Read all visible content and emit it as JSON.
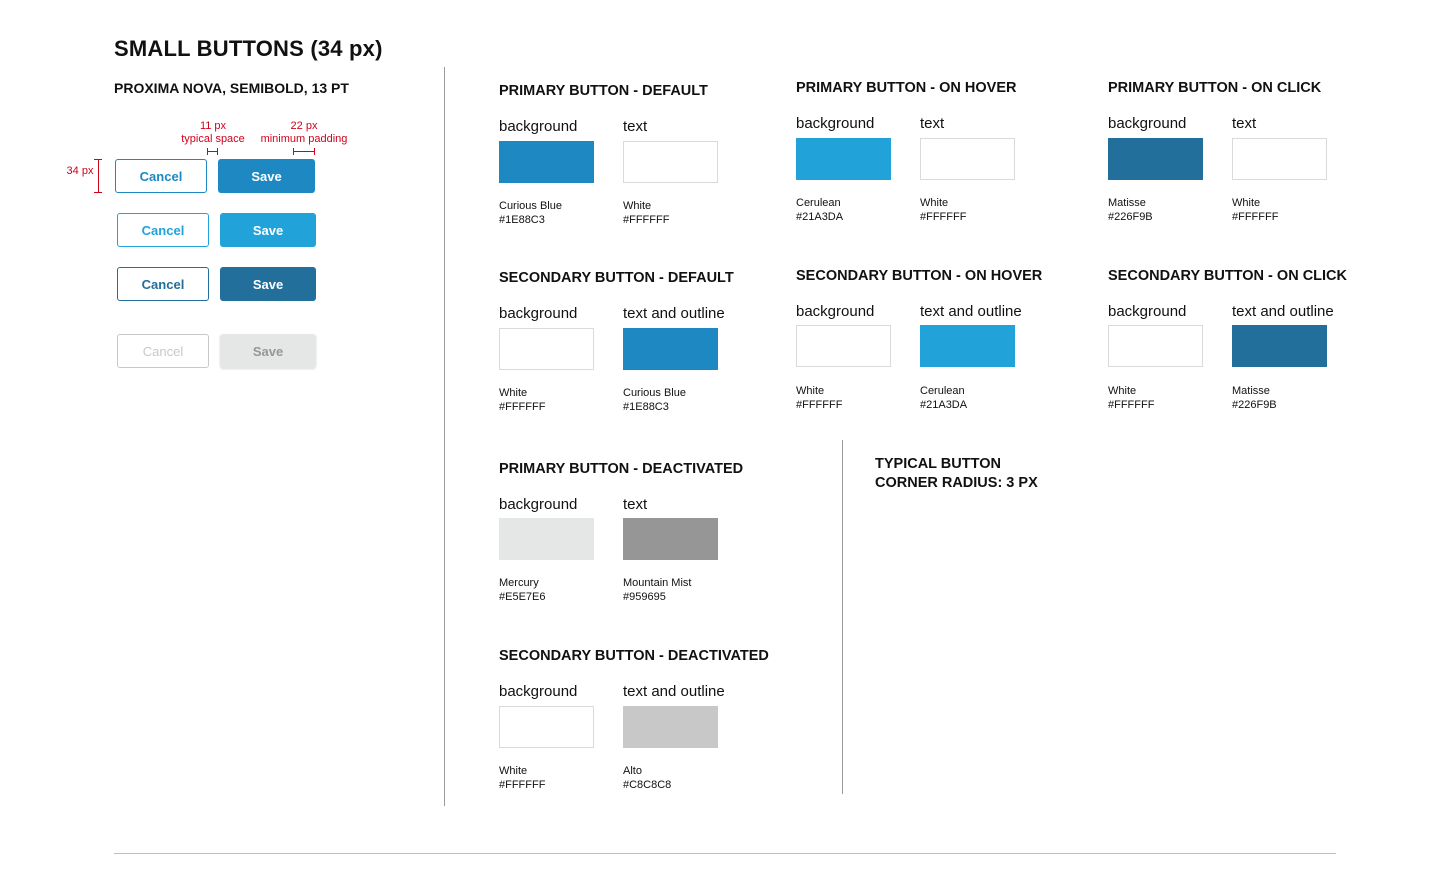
{
  "header": {
    "title": "SMALL BUTTONS (34 px)",
    "font_spec": "PROXIMA NOVA, SEMIBOLD, 13 PT"
  },
  "annotations": {
    "height": "34 px",
    "typical_space_value": "11 px",
    "typical_space_label": "typical space",
    "padding_value": "22 px",
    "padding_label": "minimum padding"
  },
  "button_examples": [
    {
      "state": "default",
      "cancel_label": "Cancel",
      "save_label": "Save",
      "primary_bg": "#1E88C3",
      "primary_text": "#FFFFFF",
      "secondary_bg": "#FFFFFF",
      "secondary_outline": "#1E88C3"
    },
    {
      "state": "hover",
      "cancel_label": "Cancel",
      "save_label": "Save",
      "primary_bg": "#21A3DA",
      "primary_text": "#FFFFFF",
      "secondary_bg": "#FFFFFF",
      "secondary_outline": "#21A3DA"
    },
    {
      "state": "click",
      "cancel_label": "Cancel",
      "save_label": "Save",
      "primary_bg": "#226F9B",
      "primary_text": "#FFFFFF",
      "secondary_bg": "#FFFFFF",
      "secondary_outline": "#226F9B"
    },
    {
      "state": "deactivated",
      "cancel_label": "Cancel",
      "save_label": "Save",
      "primary_bg": "#E5E7E6",
      "primary_text": "#959695",
      "secondary_bg": "#FFFFFF",
      "secondary_outline": "#C8C8C8"
    }
  ],
  "sections": [
    {
      "title": "PRIMARY BUTTON - DEFAULT",
      "swatches": [
        {
          "label": "background",
          "name": "Curious Blue",
          "hex": "#1E88C3"
        },
        {
          "label": "text",
          "name": "White",
          "hex": "#FFFFFF"
        }
      ]
    },
    {
      "title": "PRIMARY BUTTON - ON HOVER",
      "swatches": [
        {
          "label": "background",
          "name": "Cerulean",
          "hex": "#21A3DA"
        },
        {
          "label": "text",
          "name": "White",
          "hex": "#FFFFFF"
        }
      ]
    },
    {
      "title": "PRIMARY BUTTON - ON CLICK",
      "swatches": [
        {
          "label": "background",
          "name": "Matisse",
          "hex": "#226F9B"
        },
        {
          "label": "text",
          "name": "White",
          "hex": "#FFFFFF"
        }
      ]
    },
    {
      "title": "SECONDARY BUTTON - DEFAULT",
      "swatches": [
        {
          "label": "background",
          "name": "White",
          "hex": "#FFFFFF"
        },
        {
          "label": "text and outline",
          "name": "Curious Blue",
          "hex": "#1E88C3"
        }
      ]
    },
    {
      "title": "SECONDARY BUTTON - ON HOVER",
      "swatches": [
        {
          "label": "background",
          "name": "White",
          "hex": "#FFFFFF"
        },
        {
          "label": "text and outline",
          "name": "Cerulean",
          "hex": "#21A3DA"
        }
      ]
    },
    {
      "title": "SECONDARY BUTTON - ON CLICK",
      "swatches": [
        {
          "label": "background",
          "name": "White",
          "hex": "#FFFFFF"
        },
        {
          "label": "text and outline",
          "name": "Matisse",
          "hex": "#226F9B"
        }
      ]
    },
    {
      "title": "PRIMARY BUTTON - DEACTIVATED",
      "swatches": [
        {
          "label": "background",
          "name": "Mercury",
          "hex": "#E5E7E6"
        },
        {
          "label": "text",
          "name": "Mountain Mist",
          "hex": "#959695"
        }
      ]
    },
    {
      "title": "SECONDARY BUTTON - DEACTIVATED",
      "swatches": [
        {
          "label": "background",
          "name": "White",
          "hex": "#FFFFFF"
        },
        {
          "label": "text and outline",
          "name": "Alto",
          "hex": "#C8C8C8"
        }
      ]
    }
  ],
  "radius_note": {
    "line1": "TYPICAL BUTTON",
    "line2": "CORNER RADIUS:  3 PX"
  }
}
